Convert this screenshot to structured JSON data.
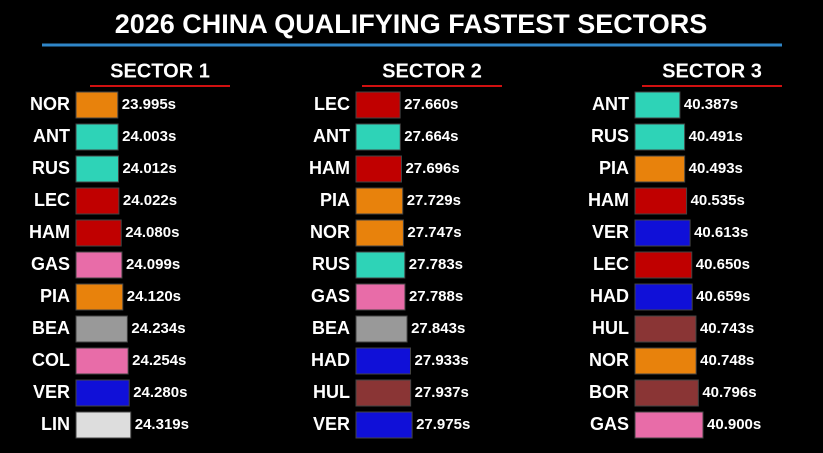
{
  "title": "2026 CHINA QUALIFYING FASTEST SECTORS",
  "chart_data": [
    {
      "type": "bar",
      "orientation": "horizontal",
      "title": "SECTOR 1",
      "categories": [
        "NOR",
        "ANT",
        "RUS",
        "LEC",
        "HAM",
        "GAS",
        "PIA",
        "BEA",
        "COL",
        "VER",
        "LIN"
      ],
      "values": [
        23.995,
        24.003,
        24.012,
        24.022,
        24.08,
        24.099,
        24.12,
        24.234,
        24.254,
        24.28,
        24.319
      ],
      "value_labels": [
        "23.995s",
        "24.003s",
        "24.012s",
        "24.022s",
        "24.080s",
        "24.099s",
        "24.120s",
        "24.234s",
        "24.254s",
        "24.280s",
        "24.319s"
      ],
      "colors": [
        "#e8820c",
        "#2ed3b7",
        "#2ed3b7",
        "#c00000",
        "#c00000",
        "#e86ca8",
        "#e8820c",
        "#999999",
        "#e86ca8",
        "#1010d8",
        "#dddddd"
      ],
      "xlim": [
        22.95,
        25.45
      ]
    },
    {
      "type": "bar",
      "orientation": "horizontal",
      "title": "SECTOR 2",
      "categories": [
        "LEC",
        "ANT",
        "HAM",
        "PIA",
        "NOR",
        "RUS",
        "GAS",
        "BEA",
        "HAD",
        "HUL",
        "VER"
      ],
      "values": [
        27.66,
        27.664,
        27.696,
        27.729,
        27.747,
        27.783,
        27.788,
        27.843,
        27.933,
        27.937,
        27.975
      ],
      "value_labels": [
        "27.660s",
        "27.664s",
        "27.696s",
        "27.729s",
        "27.747s",
        "27.783s",
        "27.788s",
        "27.843s",
        "27.933s",
        "27.937s",
        "27.975s"
      ],
      "colors": [
        "#c00000",
        "#2ed3b7",
        "#c00000",
        "#e8820c",
        "#e8820c",
        "#2ed3b7",
        "#e86ca8",
        "#999999",
        "#1010d8",
        "#8a3535",
        "#1010d8"
      ],
      "xlim": [
        26.5,
        29.13
      ]
    },
    {
      "type": "bar",
      "orientation": "horizontal",
      "title": "SECTOR 3",
      "categories": [
        "ANT",
        "RUS",
        "PIA",
        "HAM",
        "VER",
        "LEC",
        "HAD",
        "HUL",
        "NOR",
        "BOR",
        "GAS"
      ],
      "values": [
        40.387,
        40.491,
        40.493,
        40.535,
        40.613,
        40.65,
        40.659,
        40.743,
        40.748,
        40.796,
        40.9
      ],
      "value_labels": [
        "40.387s",
        "40.491s",
        "40.493s",
        "40.535s",
        "40.613s",
        "40.650s",
        "40.659s",
        "40.743s",
        "40.748s",
        "40.796s",
        "40.900s"
      ],
      "colors": [
        "#2ed3b7",
        "#2ed3b7",
        "#e8820c",
        "#c00000",
        "#1010d8",
        "#c00000",
        "#1010d8",
        "#8a3535",
        "#e8820c",
        "#8a3535",
        "#e86ca8"
      ],
      "xlim": [
        39.39,
        41.61
      ]
    }
  ]
}
